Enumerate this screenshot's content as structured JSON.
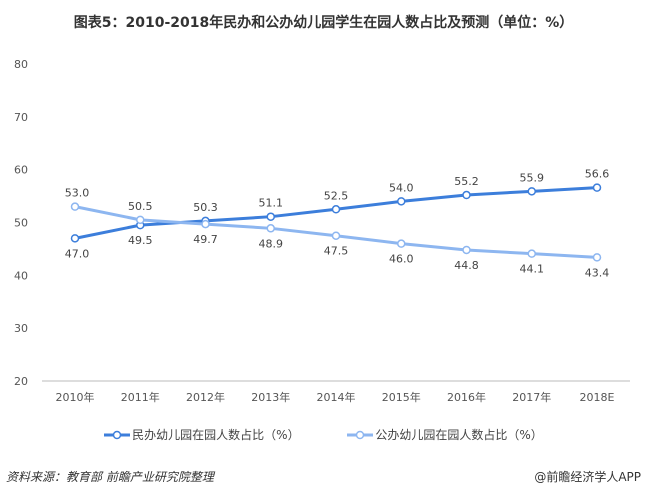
{
  "chart_data": {
    "type": "line",
    "title": "图表5：2010-2018年民办和公办幼儿园学生在园人数占比及预测（单位：%）",
    "categories": [
      "2010年",
      "2011年",
      "2012年",
      "2013年",
      "2014年",
      "2015年",
      "2016年",
      "2017年",
      "2018E"
    ],
    "ylim": [
      20,
      80
    ],
    "yticks": [
      20,
      30,
      40,
      50,
      60,
      70,
      80
    ],
    "grid": false,
    "legend": "bottom",
    "series": [
      {
        "name": "民办幼儿园在园人数占比（%）",
        "color": "#3C7EDB",
        "values": [
          47.0,
          49.5,
          50.3,
          51.1,
          52.5,
          54.0,
          55.2,
          55.9,
          56.6
        ],
        "labels": [
          "47.0",
          "49.5",
          "50.3",
          "51.1",
          "52.5",
          "54.0",
          "55.2",
          "55.9",
          "56.6"
        ]
      },
      {
        "name": "公办幼儿园在园人数占比（%）",
        "color": "#8DB6F0",
        "values": [
          53.0,
          50.5,
          49.7,
          48.9,
          47.5,
          46.0,
          44.8,
          44.1,
          43.4
        ],
        "labels": [
          "53.0",
          "50.5",
          "49.7",
          "48.9",
          "47.5",
          "46.0",
          "44.8",
          "44.1",
          "43.4"
        ]
      }
    ]
  },
  "footer": {
    "source": "资料来源：教育部  前瞻产业研究院整理",
    "brand": "@前瞻经济学人APP"
  }
}
